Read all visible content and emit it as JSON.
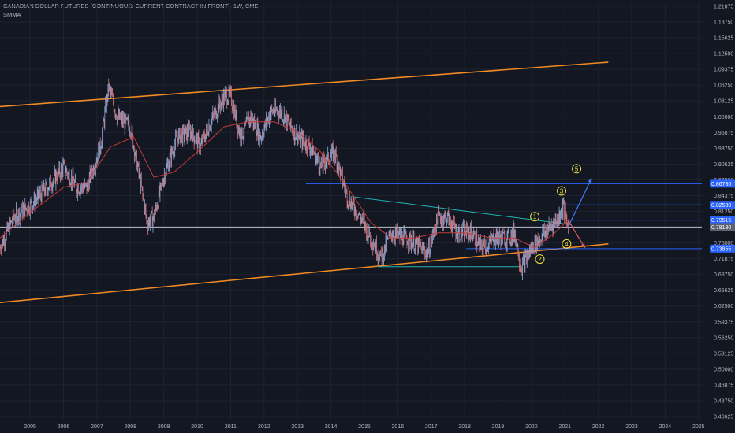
{
  "header": {
    "title": "CANADIAN DOLLAR FUTURES (CONTINUOUS: CURRENT CONTRACT IN FRONT), 1W, CME",
    "indicator": "SMMA"
  },
  "colors": {
    "background": "#131722",
    "grid": "#1f2330",
    "candle_up": "#8fa9d8",
    "candle_down": "#d07a80",
    "smma": "#c23a3a",
    "channel": "#f08a24",
    "hline_blue": "#2962ff",
    "hline_grey": "#a9adb8",
    "triangle": "#1fb5b5",
    "wave_label": "#f0e442",
    "projection_up": "#3d7bf5",
    "projection_down": "#e05a5a",
    "tag_blue": "#2962ff",
    "tag_grey": "#5d6270"
  },
  "chart_data": {
    "type": "candlestick",
    "title": "CANADIAN DOLLAR FUTURES (CONTINUOUS: CURRENT CONTRACT IN FRONT), 1W, CME",
    "indicator": "SMMA",
    "timeframe": "1W",
    "y_tick_labels": [
      "1.21875",
      "1.18750",
      "1.15625",
      "1.12500",
      "1.09375",
      "1.06250",
      "1.03125",
      "1.00000",
      "0.96875",
      "0.93750",
      "0.90625",
      "0.87500",
      "0.84375",
      "0.81250",
      "0.78125",
      "0.75000",
      "0.71875",
      "0.68750",
      "0.65625",
      "0.62500",
      "0.59375",
      "0.56250",
      "0.53125",
      "0.50000",
      "0.46875",
      "0.43750",
      "0.40625"
    ],
    "x_tick_labels": [
      "2005",
      "2006",
      "2007",
      "2008",
      "2009",
      "2010",
      "2011",
      "2012",
      "2013",
      "2014",
      "2015",
      "2016",
      "2017",
      "2018",
      "2019",
      "2020",
      "2021",
      "2022",
      "2023",
      "2024",
      "2025"
    ],
    "ylim": [
      0.4,
      1.225
    ],
    "xlim": [
      2004.6,
      2025.6
    ],
    "price_path": [
      [
        2004.6,
        0.74
      ],
      [
        2005.0,
        0.8
      ],
      [
        2005.6,
        0.83
      ],
      [
        2006.0,
        0.86
      ],
      [
        2006.5,
        0.9
      ],
      [
        2006.9,
        0.86
      ],
      [
        2007.2,
        0.86
      ],
      [
        2007.6,
        0.94
      ],
      [
        2007.85,
        1.06
      ],
      [
        2008.1,
        1.0
      ],
      [
        2008.5,
        0.98
      ],
      [
        2008.8,
        0.87
      ],
      [
        2009.0,
        0.79
      ],
      [
        2009.2,
        0.8
      ],
      [
        2009.5,
        0.88
      ],
      [
        2009.9,
        0.96
      ],
      [
        2010.3,
        0.97
      ],
      [
        2010.6,
        0.94
      ],
      [
        2010.9,
        0.99
      ],
      [
        2011.3,
        1.04
      ],
      [
        2011.5,
        1.04
      ],
      [
        2011.8,
        0.96
      ],
      [
        2012.1,
        1.0
      ],
      [
        2012.4,
        0.96
      ],
      [
        2012.7,
        1.01
      ],
      [
        2013.0,
        1.01
      ],
      [
        2013.5,
        0.96
      ],
      [
        2013.9,
        0.94
      ],
      [
        2014.2,
        0.9
      ],
      [
        2014.6,
        0.93
      ],
      [
        2015.0,
        0.84
      ],
      [
        2015.4,
        0.8
      ],
      [
        2015.7,
        0.76
      ],
      [
        2016.0,
        0.72
      ],
      [
        2016.3,
        0.77
      ],
      [
        2016.7,
        0.76
      ],
      [
        2017.0,
        0.75
      ],
      [
        2017.4,
        0.73
      ],
      [
        2017.7,
        0.8
      ],
      [
        2018.0,
        0.8
      ],
      [
        2018.3,
        0.77
      ],
      [
        2018.7,
        0.77
      ],
      [
        2019.0,
        0.74
      ],
      [
        2019.4,
        0.76
      ],
      [
        2019.8,
        0.76
      ],
      [
        2020.0,
        0.77
      ],
      [
        2020.2,
        0.7
      ],
      [
        2020.5,
        0.74
      ],
      [
        2020.9,
        0.77
      ],
      [
        2021.3,
        0.8
      ],
      [
        2021.45,
        0.825
      ],
      [
        2021.55,
        0.79
      ],
      [
        2021.6,
        0.785
      ]
    ],
    "smma_path": [
      [
        2004.6,
        0.76
      ],
      [
        2005.5,
        0.81
      ],
      [
        2006.5,
        0.86
      ],
      [
        2007.2,
        0.87
      ],
      [
        2007.9,
        0.94
      ],
      [
        2008.6,
        0.96
      ],
      [
        2009.2,
        0.88
      ],
      [
        2009.8,
        0.89
      ],
      [
        2010.5,
        0.93
      ],
      [
        2011.3,
        0.98
      ],
      [
        2012.0,
        0.99
      ],
      [
        2012.8,
        0.99
      ],
      [
        2013.5,
        0.97
      ],
      [
        2014.2,
        0.93
      ],
      [
        2015.0,
        0.86
      ],
      [
        2015.7,
        0.79
      ],
      [
        2016.3,
        0.76
      ],
      [
        2017.0,
        0.76
      ],
      [
        2017.7,
        0.77
      ],
      [
        2018.5,
        0.77
      ],
      [
        2019.3,
        0.76
      ],
      [
        2020.0,
        0.76
      ],
      [
        2020.6,
        0.74
      ],
      [
        2021.2,
        0.77
      ],
      [
        2021.6,
        0.795
      ]
    ],
    "horizontal_levels": [
      {
        "value": 0.8673,
        "label": "0.86730",
        "color": "blue"
      },
      {
        "value": 0.8253,
        "label": "0.82530",
        "color": "blue"
      },
      {
        "value": 0.79515,
        "label": "0.79515",
        "color": "blue"
      },
      {
        "value": 0.7813,
        "label": "0.78130",
        "color": "grey"
      },
      {
        "value": 0.73855,
        "label": "0.73855",
        "color": "blue"
      }
    ],
    "channel_lines": [
      {
        "from": [
          2004.6,
          1.02
        ],
        "to": [
          2022.8,
          1.108
        ]
      },
      {
        "from": [
          2004.6,
          0.632
        ],
        "to": [
          2022.8,
          0.748
        ]
      }
    ],
    "triangle_lines": [
      {
        "from": [
          2015.1,
          0.842
        ],
        "to": [
          2021.7,
          0.786
        ]
      },
      {
        "from": [
          2015.9,
          0.703
        ],
        "to": [
          2020.2,
          0.703
        ]
      }
    ],
    "wave_labels": [
      {
        "text": "1",
        "x": 2020.6,
        "y": 0.802
      },
      {
        "text": "2",
        "x": 2020.75,
        "y": 0.718
      },
      {
        "text": "3",
        "x": 2021.4,
        "y": 0.853
      },
      {
        "text": "4",
        "x": 2021.55,
        "y": 0.748
      },
      {
        "text": "5",
        "x": 2021.85,
        "y": 0.897
      }
    ],
    "projections": [
      {
        "from": [
          2021.6,
          0.782
        ],
        "to": [
          2022.3,
          0.878
        ],
        "color": "up"
      },
      {
        "from": [
          2021.6,
          0.795
        ],
        "to": [
          2022.1,
          0.74
        ],
        "color": "down"
      }
    ]
  }
}
